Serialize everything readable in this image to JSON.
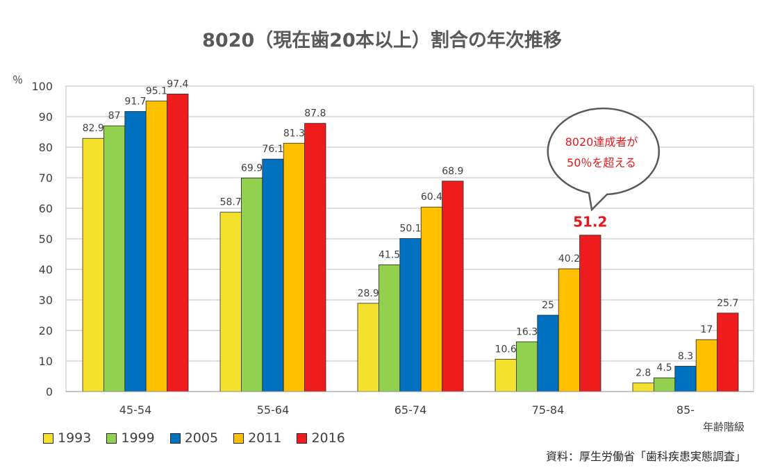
{
  "chart_data": {
    "type": "bar",
    "title": "8020（現在歯20本以上）割合の年次推移",
    "ylabel": "％",
    "xlabel": "年齢階級",
    "ylim": [
      0,
      100
    ],
    "yticks": [
      0,
      10,
      20,
      30,
      40,
      50,
      60,
      70,
      80,
      90,
      100
    ],
    "categories": [
      "45-54",
      "55-64",
      "65-74",
      "75-84",
      "85-"
    ],
    "series": [
      {
        "name": "1993",
        "color": "#f4e12e",
        "values": [
          82.9,
          58.7,
          28.9,
          10.6,
          2.8
        ],
        "labels": [
          "82.9",
          "58.7",
          "28.9",
          "10.6",
          "2.8"
        ]
      },
      {
        "name": "1999",
        "color": "#92d050",
        "values": [
          87,
          69.9,
          41.5,
          16.3,
          4.5
        ],
        "labels": [
          "87",
          "69.9",
          "41.5",
          "16.3",
          "4.5"
        ]
      },
      {
        "name": "2005",
        "color": "#0070c0",
        "values": [
          91.7,
          76.1,
          50.1,
          25,
          8.3
        ],
        "labels": [
          "91.7",
          "76.1",
          "50.1",
          "25",
          "8.3"
        ]
      },
      {
        "name": "2011",
        "color": "#ffc000",
        "values": [
          95.1,
          81.3,
          60.4,
          40.2,
          17
        ],
        "labels": [
          "95.1",
          "81.3",
          "60.4",
          "40.2",
          "17"
        ]
      },
      {
        "name": "2016",
        "color": "#ee1c1c",
        "values": [
          97.4,
          87.8,
          68.9,
          51.2,
          25.7
        ],
        "labels": [
          "97.4",
          "87.8",
          "68.9",
          "51.2",
          "25.7"
        ]
      }
    ],
    "highlight": {
      "series": "2016",
      "category": "75-84",
      "label": "51.2",
      "color": "#e8161b"
    },
    "annotation": {
      "lines": [
        "8020達成者が",
        "50％を超える"
      ],
      "color": "#e8161b"
    },
    "grid": true,
    "legend_position": "bottom-left",
    "source": "資料：厚生労働省「歯科疾患実態調査」"
  }
}
